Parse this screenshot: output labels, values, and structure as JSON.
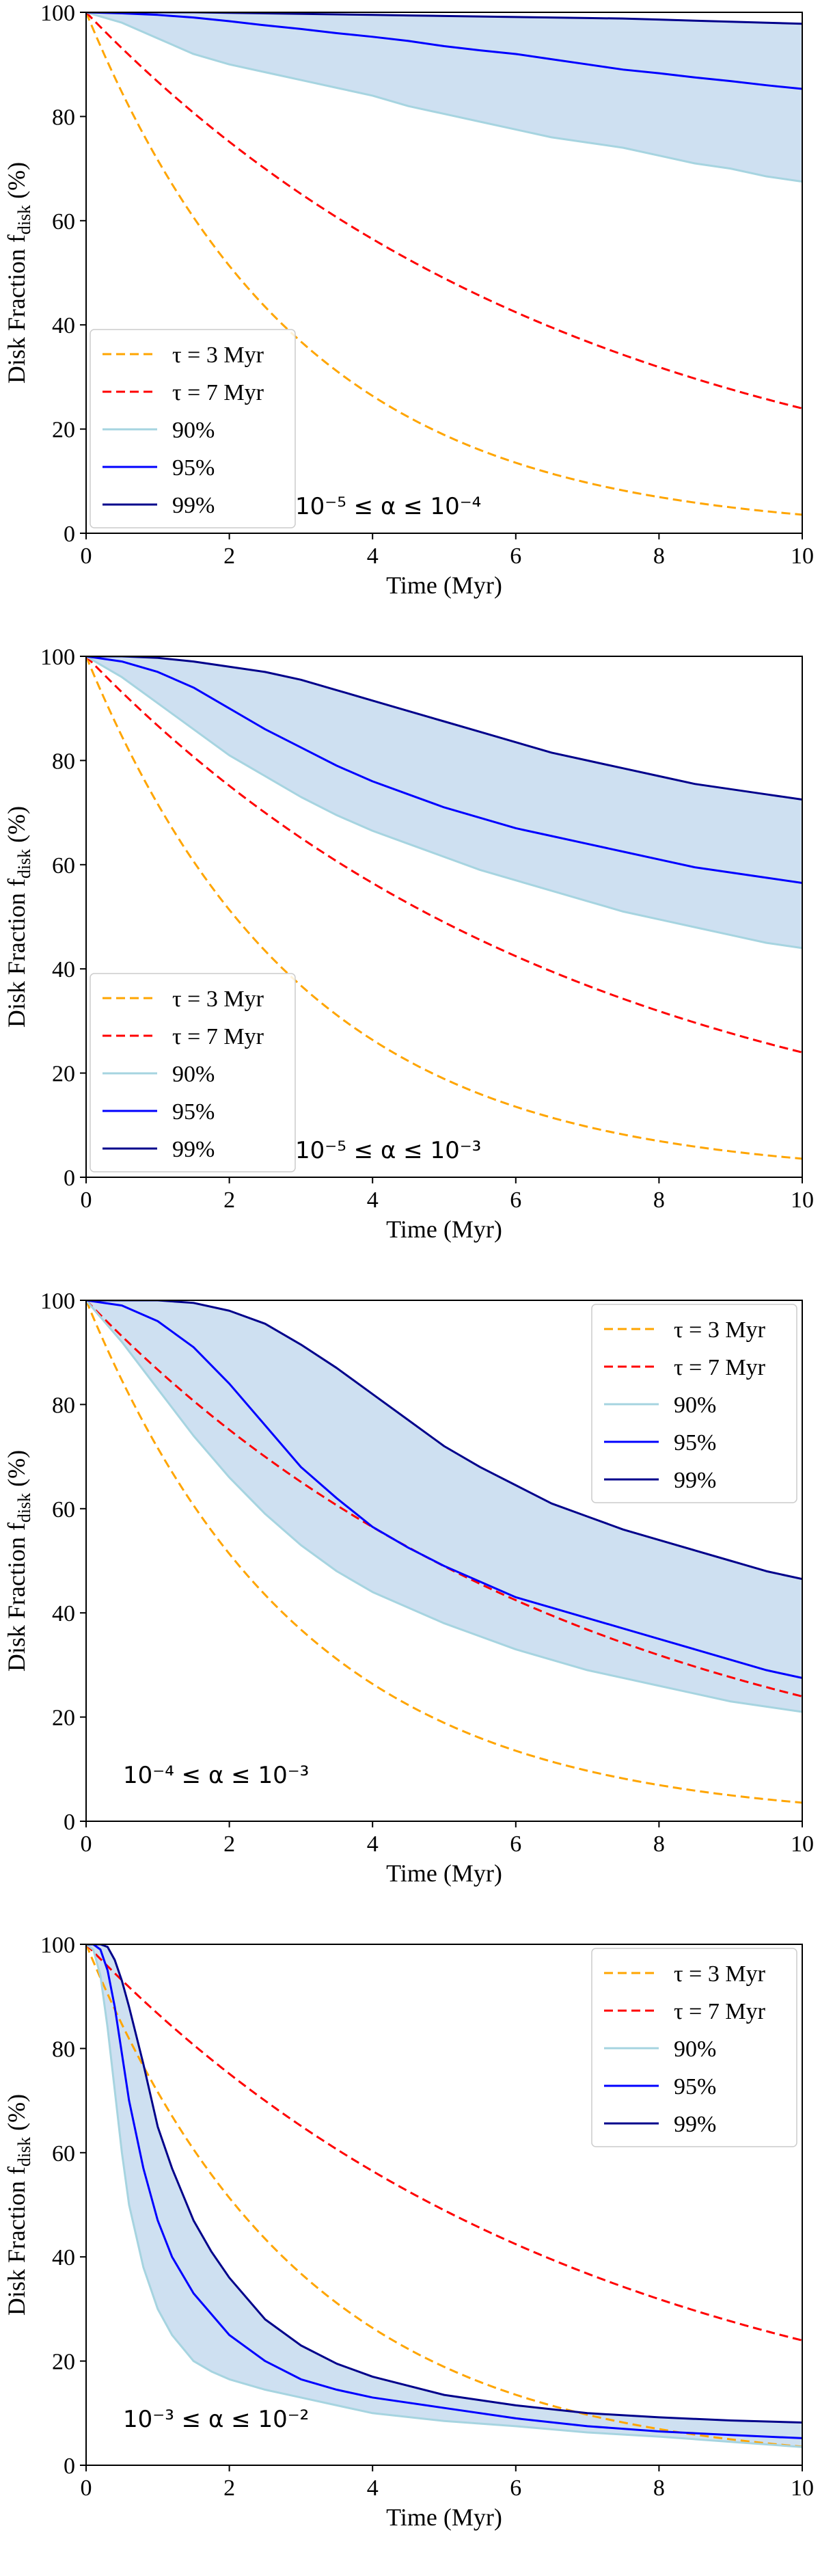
{
  "chart_data": [
    {
      "type": "line",
      "xlabel": "Time (Myr)",
      "ylabel": "Disk Fraction f",
      "ylabel_sub": "disk",
      "ylabel_unit": " (%)",
      "xlim": [
        0,
        10
      ],
      "ylim": [
        0,
        100
      ],
      "xticks": [
        "0",
        "2",
        "4",
        "6",
        "8",
        "10"
      ],
      "yticks": [
        "0",
        "20",
        "40",
        "60",
        "80",
        "100"
      ],
      "legend_position": "lower-left",
      "annotation": "10⁻⁵ ≤ α ≤ 10⁻⁴",
      "x": [
        0,
        0.5,
        1,
        1.5,
        2,
        2.5,
        3,
        3.5,
        4,
        4.5,
        5,
        5.5,
        6,
        6.5,
        7,
        7.5,
        8,
        8.5,
        9,
        9.5,
        10
      ],
      "fill_color": "#c6dbef",
      "series": [
        {
          "name": "τ = 3 Myr",
          "style": "dashed",
          "color": "#ffa500",
          "kind": "exp",
          "tau": 3
        },
        {
          "name": "τ = 7 Myr",
          "style": "dashed",
          "color": "#ff0000",
          "kind": "exp",
          "tau": 7
        },
        {
          "name": "90%",
          "style": "solid",
          "color": "#a6d4e0",
          "values": [
            100,
            98,
            95,
            92,
            90,
            88.5,
            87,
            85.5,
            84,
            82,
            80.5,
            79,
            77.5,
            76,
            75,
            74,
            72.5,
            71,
            70,
            68.5,
            67.5
          ]
        },
        {
          "name": "95%",
          "style": "solid",
          "color": "#0000ff",
          "values": [
            100,
            99.8,
            99.5,
            99,
            98.3,
            97.5,
            96.8,
            96,
            95.3,
            94.5,
            93.5,
            92.7,
            92,
            91,
            90,
            89,
            88.3,
            87.5,
            86.8,
            86,
            85.3
          ]
        },
        {
          "name": "99%",
          "style": "solid",
          "color": "#00008b",
          "values": [
            100,
            100,
            100,
            100,
            99.9,
            99.8,
            99.7,
            99.6,
            99.5,
            99.4,
            99.3,
            99.2,
            99.1,
            99,
            98.9,
            98.8,
            98.6,
            98.4,
            98.2,
            98,
            97.8
          ]
        }
      ]
    },
    {
      "type": "line",
      "xlabel": "Time (Myr)",
      "ylabel": "Disk Fraction f",
      "ylabel_sub": "disk",
      "ylabel_unit": " (%)",
      "xlim": [
        0,
        10
      ],
      "ylim": [
        0,
        100
      ],
      "xticks": [
        "0",
        "2",
        "4",
        "6",
        "8",
        "10"
      ],
      "yticks": [
        "0",
        "20",
        "40",
        "60",
        "80",
        "100"
      ],
      "legend_position": "lower-left",
      "annotation": "10⁻⁵ ≤ α ≤ 10⁻³",
      "x": [
        0,
        0.5,
        1,
        1.5,
        2,
        2.5,
        3,
        3.5,
        4,
        4.5,
        5,
        5.5,
        6,
        6.5,
        7,
        7.5,
        8,
        8.5,
        9,
        9.5,
        10
      ],
      "fill_color": "#c6dbef",
      "series": [
        {
          "name": "τ = 3 Myr",
          "style": "dashed",
          "color": "#ffa500",
          "kind": "exp",
          "tau": 3
        },
        {
          "name": "τ = 7 Myr",
          "style": "dashed",
          "color": "#ff0000",
          "kind": "exp",
          "tau": 7
        },
        {
          "name": "90%",
          "style": "solid",
          "color": "#a6d4e0",
          "values": [
            100,
            96,
            91,
            86,
            81,
            77,
            73,
            69.5,
            66.5,
            64,
            61.5,
            59,
            57,
            55,
            53,
            51,
            49.5,
            48,
            46.5,
            45,
            44
          ]
        },
        {
          "name": "95%",
          "style": "solid",
          "color": "#0000ff",
          "values": [
            100,
            99,
            97,
            94,
            90,
            86,
            82.5,
            79,
            76,
            73.5,
            71,
            69,
            67,
            65.5,
            64,
            62.5,
            61,
            59.5,
            58.5,
            57.5,
            56.5
          ]
        },
        {
          "name": "99%",
          "style": "solid",
          "color": "#00008b",
          "values": [
            100,
            100,
            99.7,
            99,
            98,
            97,
            95.5,
            93.5,
            91.5,
            89.5,
            87.5,
            85.5,
            83.5,
            81.5,
            80,
            78.5,
            77,
            75.5,
            74.5,
            73.5,
            72.5
          ]
        }
      ]
    },
    {
      "type": "line",
      "xlabel": "Time (Myr)",
      "ylabel": "Disk Fraction f",
      "ylabel_sub": "disk",
      "ylabel_unit": " (%)",
      "xlim": [
        0,
        10
      ],
      "ylim": [
        0,
        100
      ],
      "xticks": [
        "0",
        "2",
        "4",
        "6",
        "8",
        "10"
      ],
      "yticks": [
        "0",
        "20",
        "40",
        "60",
        "80",
        "100"
      ],
      "legend_position": "upper-right",
      "annotation": "10⁻⁴ ≤ α ≤ 10⁻³",
      "x": [
        0,
        0.5,
        1,
        1.5,
        2,
        2.5,
        3,
        3.5,
        4,
        4.5,
        5,
        5.5,
        6,
        6.5,
        7,
        7.5,
        8,
        8.5,
        9,
        9.5,
        10
      ],
      "fill_color": "#c6dbef",
      "series": [
        {
          "name": "τ = 3 Myr",
          "style": "dashed",
          "color": "#ffa500",
          "kind": "exp",
          "tau": 3
        },
        {
          "name": "τ = 7 Myr",
          "style": "dashed",
          "color": "#ff0000",
          "kind": "exp",
          "tau": 7
        },
        {
          "name": "90%",
          "style": "solid",
          "color": "#a6d4e0",
          "values": [
            100,
            92,
            83,
            74,
            66,
            59,
            53,
            48,
            44,
            41,
            38,
            35.5,
            33,
            31,
            29,
            27.5,
            26,
            24.5,
            23,
            22,
            21
          ]
        },
        {
          "name": "95%",
          "style": "solid",
          "color": "#0000ff",
          "values": [
            100,
            99,
            96,
            91,
            84,
            76,
            68,
            62,
            56.5,
            52.5,
            49,
            46,
            43,
            41,
            39,
            37,
            35,
            33,
            31,
            29,
            27.5
          ]
        },
        {
          "name": "99%",
          "style": "solid",
          "color": "#00008b",
          "values": [
            100,
            100,
            100,
            99.5,
            98,
            95.5,
            91.5,
            87,
            82,
            77,
            72,
            68,
            64.5,
            61,
            58.5,
            56,
            54,
            52,
            50,
            48,
            46.5
          ]
        }
      ]
    },
    {
      "type": "line",
      "xlabel": "Time (Myr)",
      "ylabel": "Disk Fraction f",
      "ylabel_sub": "disk",
      "ylabel_unit": " (%)",
      "xlim": [
        0,
        10
      ],
      "ylim": [
        0,
        100
      ],
      "xticks": [
        "0",
        "2",
        "4",
        "6",
        "8",
        "10"
      ],
      "yticks": [
        "0",
        "20",
        "40",
        "60",
        "80",
        "100"
      ],
      "legend_position": "upper-right",
      "annotation": "10⁻³ ≤ α ≤ 10⁻²",
      "x": [
        0,
        0.1,
        0.2,
        0.3,
        0.4,
        0.5,
        0.6,
        0.8,
        1,
        1.2,
        1.5,
        1.75,
        2,
        2.5,
        3,
        3.5,
        4,
        5,
        6,
        7,
        8,
        9,
        10
      ],
      "fill_color": "#c6dbef",
      "series": [
        {
          "name": "τ = 3 Myr",
          "style": "dashed",
          "color": "#ffa500",
          "kind": "exp",
          "tau": 3
        },
        {
          "name": "τ = 7 Myr",
          "style": "dashed",
          "color": "#ff0000",
          "kind": "exp",
          "tau": 7
        },
        {
          "name": "90%",
          "style": "solid",
          "color": "#a6d4e0",
          "values": [
            100,
            99,
            94,
            84,
            72,
            60,
            50,
            38,
            30,
            25,
            20,
            18,
            16.5,
            14.5,
            13,
            11.5,
            10,
            8.5,
            7.5,
            6.3,
            5.5,
            4.5,
            3.5
          ]
        },
        {
          "name": "95%",
          "style": "solid",
          "color": "#0000ff",
          "values": [
            100,
            100,
            99,
            95,
            88,
            79,
            70,
            57,
            47,
            40,
            33,
            29,
            25,
            20,
            16.5,
            14.5,
            13,
            11,
            9,
            7.5,
            6.5,
            5.8,
            5.2
          ]
        },
        {
          "name": "99%",
          "style": "solid",
          "color": "#00008b",
          "values": [
            100,
            100,
            100,
            99.5,
            97,
            93,
            88,
            77,
            65,
            57,
            47,
            41,
            36,
            28,
            23,
            19.5,
            17,
            13.5,
            11.5,
            10,
            9.2,
            8.6,
            8.2
          ]
        }
      ]
    }
  ]
}
